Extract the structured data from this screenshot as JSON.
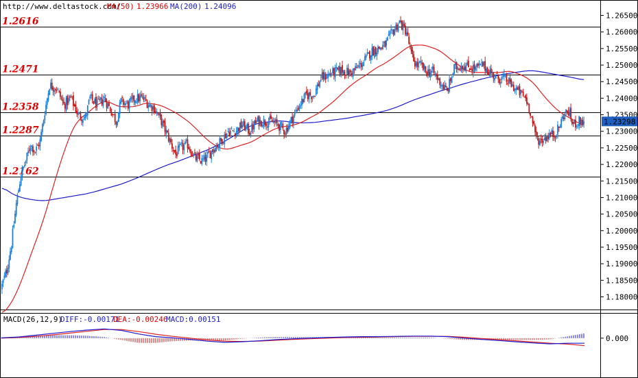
{
  "header": {
    "url": "http://www.deltastock.com/",
    "ma50_label": "MA(50)",
    "ma50_value": "1.23966",
    "ma200_label": "MA(200)",
    "ma200_value": "1.24096"
  },
  "macd_header": {
    "title": "MACD(26,12,9)",
    "diff": "DIFF:-0.00171",
    "dea": "DEA:-0.00246",
    "macd": "MACD:0.00151"
  },
  "colors": {
    "up": "#1f7fd8",
    "down": "#c21818",
    "ma50": "#e02020",
    "ma200": "#1b1bd0",
    "level": "#000000",
    "level_label": "#e00000",
    "current_bg": "#1e5fbf"
  },
  "chart_data": [
    {
      "type": "candlestick",
      "ylim": [
        1.177,
        1.268
      ],
      "yticks": [
        "1.18000",
        "1.18500",
        "1.19000",
        "1.19500",
        "1.20000",
        "1.20500",
        "1.21000",
        "1.21500",
        "1.22000",
        "1.22500",
        "1.23000",
        "1.23500",
        "1.24000",
        "1.24500",
        "1.25000",
        "1.25500",
        "1.26000",
        "1.26500"
      ],
      "current_price": "1.23298",
      "levels": [
        "1.2616",
        "1.2471",
        "1.2358",
        "1.2287",
        "1.2162"
      ],
      "anchors": [
        [
          0,
          1.1835
        ],
        [
          4,
          1.188
        ],
        [
          8,
          1.196
        ],
        [
          12,
          1.208
        ],
        [
          16,
          1.217
        ],
        [
          20,
          1.221
        ],
        [
          24,
          1.226
        ],
        [
          28,
          1.224
        ],
        [
          32,
          1.227
        ],
        [
          36,
          1.236
        ],
        [
          40,
          1.244
        ],
        [
          46,
          1.243
        ],
        [
          52,
          1.238
        ],
        [
          58,
          1.24
        ],
        [
          64,
          1.235
        ],
        [
          70,
          1.234
        ],
        [
          74,
          1.24
        ],
        [
          80,
          1.238
        ],
        [
          86,
          1.24
        ],
        [
          92,
          1.236
        ],
        [
          96,
          1.233
        ],
        [
          100,
          1.239
        ],
        [
          106,
          1.238
        ],
        [
          112,
          1.24
        ],
        [
          118,
          1.24
        ],
        [
          124,
          1.238
        ],
        [
          128,
          1.237
        ],
        [
          134,
          1.233
        ],
        [
          140,
          1.228
        ],
        [
          146,
          1.223
        ],
        [
          150,
          1.225
        ],
        [
          156,
          1.226
        ],
        [
          162,
          1.222
        ],
        [
          168,
          1.221
        ],
        [
          172,
          1.222
        ],
        [
          178,
          1.225
        ],
        [
          184,
          1.227
        ],
        [
          190,
          1.23
        ],
        [
          196,
          1.23
        ],
        [
          202,
          1.232
        ],
        [
          208,
          1.23
        ],
        [
          214,
          1.233
        ],
        [
          220,
          1.233
        ],
        [
          226,
          1.233
        ],
        [
          232,
          1.232
        ],
        [
          238,
          1.23
        ],
        [
          244,
          1.234
        ],
        [
          250,
          1.238
        ],
        [
          256,
          1.241
        ],
        [
          262,
          1.241
        ],
        [
          268,
          1.246
        ],
        [
          274,
          1.247
        ],
        [
          280,
          1.248
        ],
        [
          286,
          1.2485
        ],
        [
          292,
          1.2475
        ],
        [
          298,
          1.249
        ],
        [
          304,
          1.251
        ],
        [
          310,
          1.254
        ],
        [
          316,
          1.255
        ],
        [
          322,
          1.256
        ],
        [
          328,
          1.26
        ],
        [
          334,
          1.263
        ],
        [
          340,
          1.26
        ],
        [
          344,
          1.253
        ],
        [
          348,
          1.25
        ],
        [
          352,
          1.25
        ],
        [
          356,
          1.248
        ],
        [
          362,
          1.248
        ],
        [
          368,
          1.245
        ],
        [
          374,
          1.242
        ],
        [
          380,
          1.249
        ],
        [
          386,
          1.25
        ],
        [
          392,
          1.2495
        ],
        [
          398,
          1.249
        ],
        [
          404,
          1.25
        ],
        [
          410,
          1.248
        ],
        [
          416,
          1.246
        ],
        [
          422,
          1.246
        ],
        [
          428,
          1.244
        ],
        [
          434,
          1.242
        ],
        [
          440,
          1.24
        ],
        [
          444,
          1.236
        ],
        [
          448,
          1.229
        ],
        [
          452,
          1.227
        ],
        [
          456,
          1.228
        ],
        [
          460,
          1.229
        ],
        [
          464,
          1.229
        ],
        [
          468,
          1.231
        ],
        [
          472,
          1.235
        ],
        [
          476,
          1.236
        ],
        [
          480,
          1.232
        ],
        [
          484,
          1.233
        ],
        [
          489,
          1.233
        ]
      ]
    },
    {
      "type": "macd",
      "ylim": [
        -0.006,
        0.005
      ],
      "yticks": [
        "0.000"
      ],
      "series": [
        {
          "name": "DIFF",
          "values": [
            0.0001,
            0.0004,
            0.001,
            0.0016,
            0.0022,
            0.0027,
            0.0031,
            0.0026,
            0.0014,
            0.0005,
            0.0001,
            -0.0004,
            -0.001,
            -0.0014,
            -0.0012,
            -0.0009,
            -0.0005,
            -0.0002,
            0.0,
            0.0002,
            0.0004,
            0.0005,
            0.0005,
            0.0006,
            0.0007,
            0.0007,
            0.0005,
            0.0,
            -0.0004,
            -0.0008,
            -0.0012,
            -0.0016,
            -0.0019,
            -0.0017,
            -0.0017
          ]
        },
        {
          "name": "DEA",
          "values": [
            0.0,
            0.0002,
            0.0006,
            0.0011,
            0.0017,
            0.0023,
            0.0029,
            0.0029,
            0.0022,
            0.0013,
            0.0006,
            0.0,
            -0.0006,
            -0.001,
            -0.0011,
            -0.001,
            -0.0007,
            -0.0004,
            -0.0002,
            0.0,
            0.0002,
            0.0003,
            0.0004,
            0.0005,
            0.0006,
            0.0006,
            0.0006,
            0.0003,
            -0.0001,
            -0.0005,
            -0.0009,
            -0.0013,
            -0.0017,
            -0.002,
            -0.0025
          ]
        }
      ]
    }
  ]
}
